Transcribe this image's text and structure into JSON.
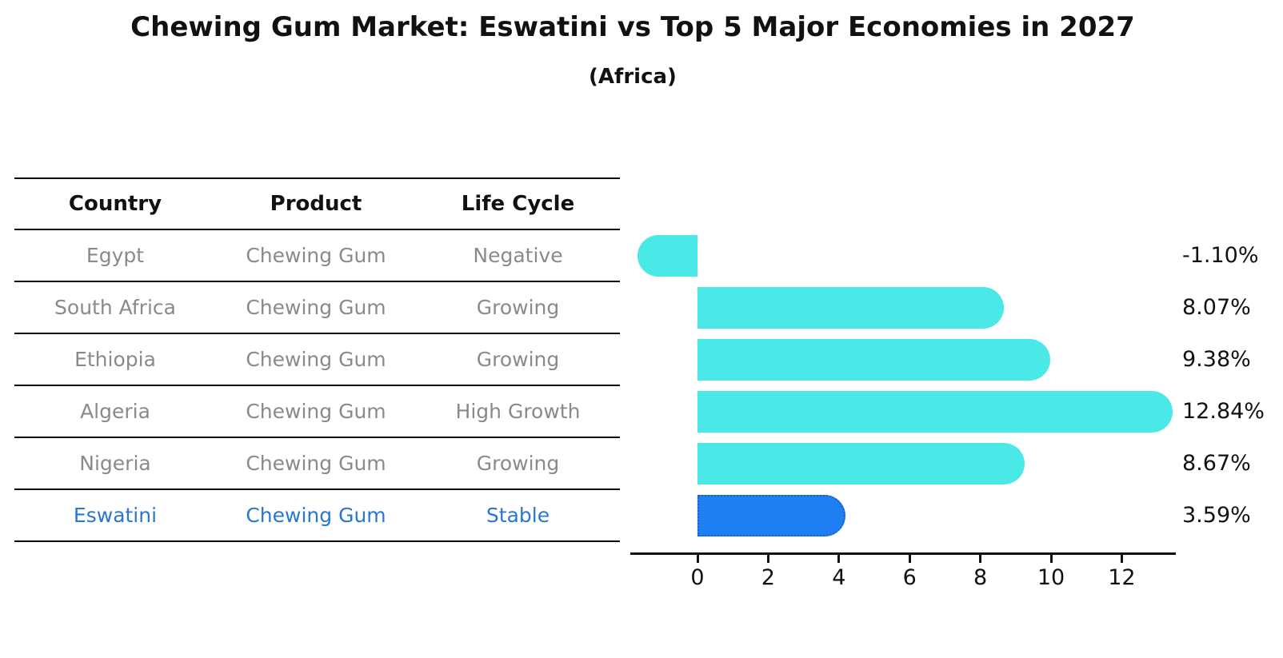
{
  "title": "Chewing Gum Market: Eswatini vs Top 5 Major Economies in 2027",
  "subtitle": "(Africa)",
  "table": {
    "headers": [
      "Country",
      "Product",
      "Life Cycle"
    ]
  },
  "chart_data": {
    "type": "bar",
    "orientation": "horizontal",
    "title": "Chewing Gum Market: Eswatini vs Top 5 Major Economies in 2027",
    "subtitle": "(Africa)",
    "xlabel": "",
    "ylabel": "",
    "xlim": [
      -1.9,
      13.5
    ],
    "x_ticks": [
      0,
      2,
      4,
      6,
      8,
      10,
      12
    ],
    "grid": false,
    "legend": null,
    "rows": [
      {
        "country": "Egypt",
        "product": "Chewing Gum",
        "life_cycle": "Negative",
        "value": -1.1,
        "label": "-1.10%",
        "highlight": false
      },
      {
        "country": "South Africa",
        "product": "Chewing Gum",
        "life_cycle": "Growing",
        "value": 8.07,
        "label": "8.07%",
        "highlight": false
      },
      {
        "country": "Ethiopia",
        "product": "Chewing Gum",
        "life_cycle": "Growing",
        "value": 9.38,
        "label": "9.38%",
        "highlight": false
      },
      {
        "country": "Algeria",
        "product": "Chewing Gum",
        "life_cycle": "High Growth",
        "value": 12.84,
        "label": "12.84%",
        "highlight": false
      },
      {
        "country": "Nigeria",
        "product": "Chewing Gum",
        "life_cycle": "Growing",
        "value": 8.67,
        "label": "8.67%",
        "highlight": false
      },
      {
        "country": "Eswatini",
        "product": "Chewing Gum",
        "life_cycle": "Stable",
        "value": 3.59,
        "label": "3.59%",
        "highlight": true
      }
    ],
    "colors": {
      "bar": "#4be8e8",
      "highlight_bar": "#1e7ff2",
      "highlight_border": "#1a5ece",
      "highlight_text": "#2878d2",
      "row_text": "#8a8a8a",
      "axis": "#111111"
    }
  }
}
